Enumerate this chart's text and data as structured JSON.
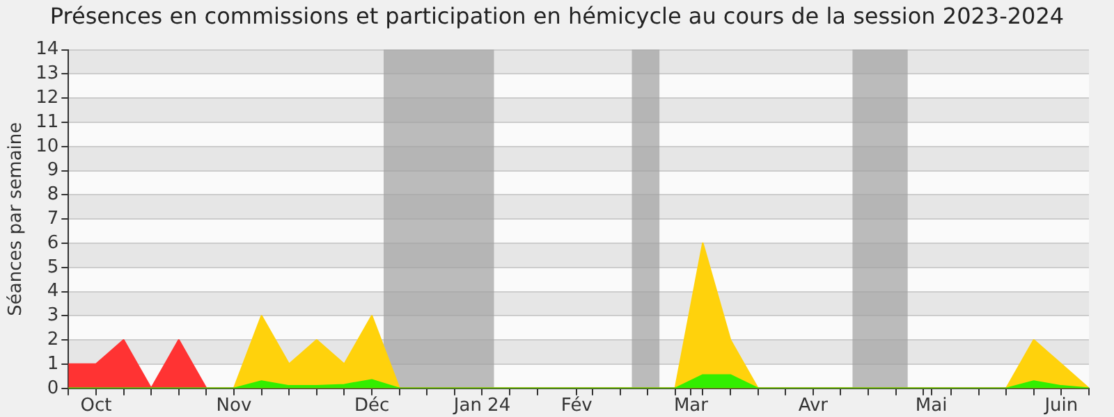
{
  "chart_data": {
    "type": "area",
    "title": "Présences en commissions et participation en hémicycle au cours de la session 2023-2024",
    "ylabel": "Séances par semaine",
    "x": [
      "2023-09-25",
      "2023-10-02",
      "2023-10-09",
      "2023-10-16",
      "2023-10-23",
      "2023-10-30",
      "2023-11-06",
      "2023-11-13",
      "2023-11-20",
      "2023-11-27",
      "2023-12-04",
      "2023-12-11",
      "2023-12-18",
      "2023-12-25",
      "2024-01-01",
      "2024-01-08",
      "2024-01-15",
      "2024-01-22",
      "2024-01-29",
      "2024-02-05",
      "2024-02-12",
      "2024-02-19",
      "2024-02-26",
      "2024-03-04",
      "2024-03-11",
      "2024-03-18",
      "2024-03-25",
      "2024-04-01",
      "2024-04-08",
      "2024-04-15",
      "2024-04-22",
      "2024-04-29",
      "2024-05-06",
      "2024-05-13",
      "2024-05-20",
      "2024-05-27",
      "2024-06-03",
      "2024-06-10"
    ],
    "series": [
      {
        "color": "#ffd20c",
        "values": [
          0,
          0,
          0,
          0,
          0,
          0,
          0,
          3,
          1,
          2,
          1,
          3,
          0,
          0,
          0,
          0,
          0,
          0,
          0,
          0,
          0,
          0,
          0,
          6,
          2,
          0,
          0,
          0,
          0,
          0,
          0,
          0,
          0,
          0,
          0,
          2,
          1,
          0
        ]
      },
      {
        "color": "#ff3333",
        "values": [
          1,
          1,
          2,
          0,
          2,
          0,
          0,
          0,
          0,
          0,
          0,
          0,
          0,
          0,
          0,
          0,
          0,
          0,
          0,
          0,
          0,
          0,
          0,
          0,
          0,
          0,
          0,
          0,
          0,
          0,
          0,
          0,
          0,
          0,
          0,
          0,
          0,
          0
        ]
      },
      {
        "color": "#33ee00",
        "values": [
          0,
          0,
          0,
          0,
          0,
          0,
          0,
          0.3,
          0.1,
          0.1,
          0.15,
          0.35,
          0,
          0,
          0,
          0,
          0,
          0,
          0,
          0,
          0,
          0,
          0,
          0.55,
          0.55,
          0,
          0,
          0,
          0,
          0,
          0,
          0,
          0,
          0,
          0,
          0.3,
          0.1,
          0
        ]
      }
    ],
    "xlim": [
      "2023-09-25",
      "2024-06-10"
    ],
    "xticks": [
      {
        "value": "2023-09-25",
        "label": null
      },
      {
        "value": "2023-10-02",
        "label": "Oct"
      },
      {
        "value": "2023-10-09",
        "label": null
      },
      {
        "value": "2023-10-16",
        "label": null
      },
      {
        "value": "2023-10-23",
        "label": null
      },
      {
        "value": "2023-10-30",
        "label": null
      },
      {
        "value": "2023-11-06",
        "label": "Nov"
      },
      {
        "value": "2023-11-13",
        "label": null
      },
      {
        "value": "2023-11-20",
        "label": null
      },
      {
        "value": "2023-11-27",
        "label": null
      },
      {
        "value": "2023-12-04",
        "label": null
      },
      {
        "value": "2023-12-11",
        "label": "Déc"
      },
      {
        "value": "2023-12-18",
        "label": null
      },
      {
        "value": "2023-12-25",
        "label": null
      },
      {
        "value": "2024-01-01",
        "label": null
      },
      {
        "value": "2024-01-08",
        "label": "Jan 24"
      },
      {
        "value": "2024-01-15",
        "label": null
      },
      {
        "value": "2024-01-22",
        "label": null
      },
      {
        "value": "2024-02-01",
        "label": "Fév"
      },
      {
        "value": "2024-02-05",
        "label": null
      },
      {
        "value": "2024-02-12",
        "label": null
      },
      {
        "value": "2024-02-19",
        "label": null
      },
      {
        "value": "2024-02-26",
        "label": null
      },
      {
        "value": "2024-03-01",
        "label": "Mar"
      },
      {
        "value": "2024-03-04",
        "label": null
      },
      {
        "value": "2024-03-11",
        "label": null
      },
      {
        "value": "2024-03-18",
        "label": null
      },
      {
        "value": "2024-03-25",
        "label": null
      },
      {
        "value": "2024-04-01",
        "label": "Avr"
      },
      {
        "value": "2024-04-08",
        "label": null
      },
      {
        "value": "2024-04-15",
        "label": null
      },
      {
        "value": "2024-04-22",
        "label": null
      },
      {
        "value": "2024-04-29",
        "label": null
      },
      {
        "value": "2024-05-01",
        "label": "Mai"
      },
      {
        "value": "2024-05-06",
        "label": null
      },
      {
        "value": "2024-05-13",
        "label": null
      },
      {
        "value": "2024-05-20",
        "label": null
      },
      {
        "value": "2024-05-27",
        "label": null
      },
      {
        "value": "2024-06-03",
        "label": "Juin"
      },
      {
        "value": "2024-06-10",
        "label": null
      }
    ],
    "ylim": [
      0,
      14
    ],
    "yticks": [
      0,
      1,
      2,
      3,
      4,
      5,
      6,
      7,
      8,
      9,
      10,
      11,
      12,
      13,
      14
    ],
    "bands": [
      {
        "axis": "x",
        "from": "2023-12-14",
        "to": "2024-01-11",
        "color": "#a0a0a0"
      },
      {
        "axis": "x",
        "from": "2024-02-15",
        "to": "2024-02-22",
        "color": "#a0a0a0"
      },
      {
        "axis": "x",
        "from": "2024-04-11",
        "to": "2024-04-25",
        "color": "#a0a0a0"
      }
    ],
    "grid": "y",
    "legend": false,
    "marker": "none"
  }
}
